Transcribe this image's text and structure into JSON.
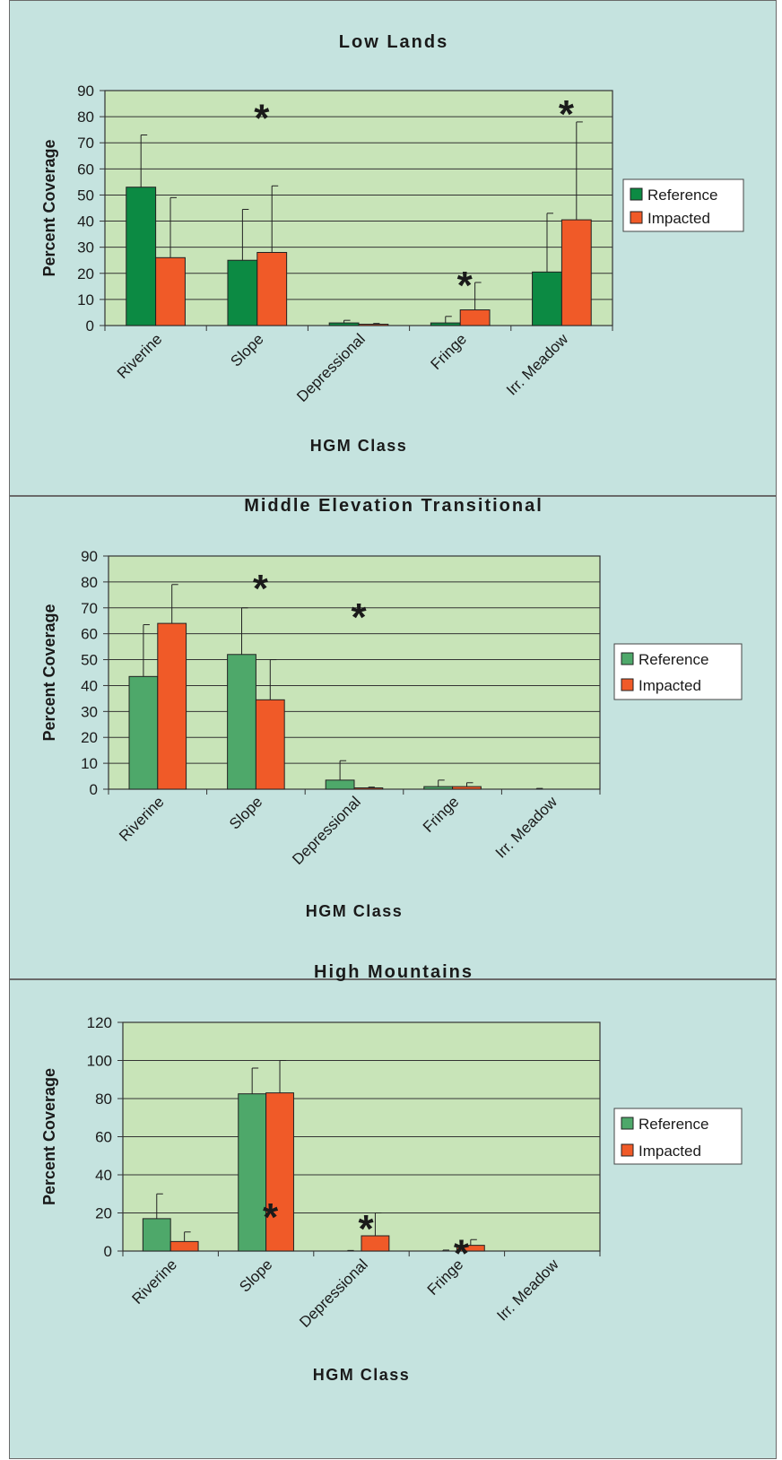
{
  "chart_data": [
    {
      "type": "bar",
      "title": "Low Lands",
      "xlabel": "HGM Class",
      "ylabel": "Percent Coverage",
      "ylim": [
        0,
        90
      ],
      "yticks": [
        0,
        10,
        20,
        30,
        40,
        50,
        60,
        70,
        80,
        90
      ],
      "categories": [
        "Riverine",
        "Slope",
        "Depressional",
        "Fringe",
        "Irr. Meadow"
      ],
      "series": [
        {
          "name": "Reference",
          "values": [
            53,
            25,
            1,
            1,
            20.5
          ],
          "errors": [
            20,
            19.5,
            1,
            2.5,
            22.5
          ],
          "color": "#0c8a43"
        },
        {
          "name": "Impacted",
          "values": [
            26,
            28,
            0.5,
            6,
            40.5
          ],
          "errors": [
            23,
            25.5,
            0.3,
            10.5,
            37.5
          ],
          "color": "#f05a28"
        }
      ],
      "grid": true,
      "legend_position": "right",
      "annotations": [
        {
          "text": "*",
          "category": "Slope",
          "at": 84
        },
        {
          "text": "*",
          "category": "Fringe",
          "at": 20
        },
        {
          "text": "*",
          "category": "Irr. Meadow",
          "at": 85.5
        }
      ]
    },
    {
      "type": "bar",
      "title": "Middle Elevation Transitional",
      "xlabel": "HGM Class",
      "ylabel": "Percent Coverage",
      "ylim": [
        0,
        90
      ],
      "yticks": [
        0,
        10,
        20,
        30,
        40,
        50,
        60,
        70,
        80,
        90
      ],
      "categories": [
        "Riverine",
        "Slope",
        "Depressional",
        "Fringe",
        "Irr. Meadow"
      ],
      "series": [
        {
          "name": "Reference",
          "values": [
            43.5,
            52,
            3.5,
            1,
            0
          ],
          "errors": [
            20,
            18,
            7.5,
            2.5,
            0.3
          ],
          "color": "#4ea86a"
        },
        {
          "name": "Impacted",
          "values": [
            64,
            34.5,
            0.5,
            1,
            0
          ],
          "errors": [
            15,
            15.5,
            0.3,
            1.5,
            0
          ],
          "color": "#f05a28"
        }
      ],
      "grid": true,
      "legend_position": "right",
      "annotations": [
        {
          "text": "*",
          "category": "Slope",
          "at": 82
        },
        {
          "text": "*",
          "category": "Depressional",
          "at": 71
        }
      ]
    },
    {
      "type": "bar",
      "title": "High Mountains",
      "xlabel": "HGM Class",
      "ylabel": "Percent Coverage",
      "ylim": [
        0,
        120
      ],
      "yticks": [
        0,
        20,
        40,
        60,
        80,
        100,
        120
      ],
      "categories": [
        "Riverine",
        "Slope",
        "Depressional",
        "Fringe",
        "Irr. Meadow"
      ],
      "series": [
        {
          "name": "Reference",
          "values": [
            17,
            82.5,
            0,
            0,
            0
          ],
          "errors": [
            13,
            13.5,
            0.3,
            0.5,
            0
          ],
          "color": "#4ea86a"
        },
        {
          "name": "Impacted",
          "values": [
            5,
            83,
            8,
            3,
            0
          ],
          "errors": [
            5,
            17,
            12,
            3,
            0
          ],
          "color": "#f05a28"
        }
      ],
      "grid": true,
      "legend_position": "right",
      "annotations": [
        {
          "text": "*",
          "category": "Slope",
          "at": 24
        },
        {
          "text": "*",
          "category": "Depressional",
          "at": 18
        },
        {
          "text": "*",
          "category": "Fringe",
          "at": 5
        }
      ]
    }
  ]
}
